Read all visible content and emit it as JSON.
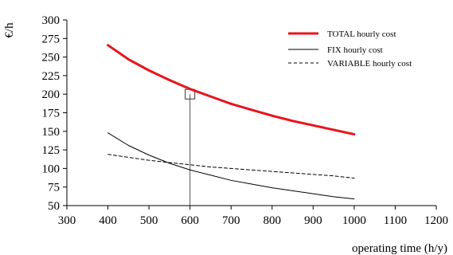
{
  "chart_data": {
    "type": "line",
    "title": "",
    "xlabel": "operating time (h/y)",
    "ylabel": "€/h",
    "xlim": [
      300,
      1200
    ],
    "ylim": [
      50,
      300
    ],
    "x_ticks": [
      300,
      400,
      500,
      600,
      700,
      800,
      900,
      1000,
      1100,
      1200
    ],
    "y_ticks": [
      50,
      75,
      100,
      125,
      150,
      175,
      200,
      225,
      250,
      275,
      300
    ],
    "grid": false,
    "legend_position": "top-right",
    "series": [
      {
        "name": "TOTAL hourly cost",
        "color": "#e8141c",
        "style": "solid-thick",
        "x": [
          400,
          450,
          500,
          550,
          600,
          650,
          700,
          750,
          800,
          850,
          900,
          950,
          1000
        ],
        "y": [
          266,
          247,
          232,
          219,
          207,
          197,
          187,
          179,
          171,
          164,
          158,
          152,
          146
        ]
      },
      {
        "name": "FIX hourly cost",
        "color": "#000000",
        "style": "solid-thin",
        "x": [
          400,
          450,
          500,
          550,
          600,
          650,
          700,
          750,
          800,
          850,
          900,
          950,
          1000
        ],
        "y": [
          148,
          131,
          118,
          107,
          98,
          91,
          84,
          79,
          74,
          70,
          66,
          62,
          59
        ]
      },
      {
        "name": "VARIABLE hourly cost",
        "color": "#000000",
        "style": "dashed",
        "x": [
          400,
          450,
          500,
          550,
          600,
          650,
          700,
          750,
          800,
          850,
          900,
          950,
          1000
        ],
        "y": [
          119,
          115,
          111,
          108,
          105,
          102,
          100,
          98,
          96,
          94,
          92,
          90,
          87
        ]
      }
    ],
    "annotation": {
      "marker": "square",
      "x": 600,
      "y": 200,
      "drop_line": true
    }
  }
}
